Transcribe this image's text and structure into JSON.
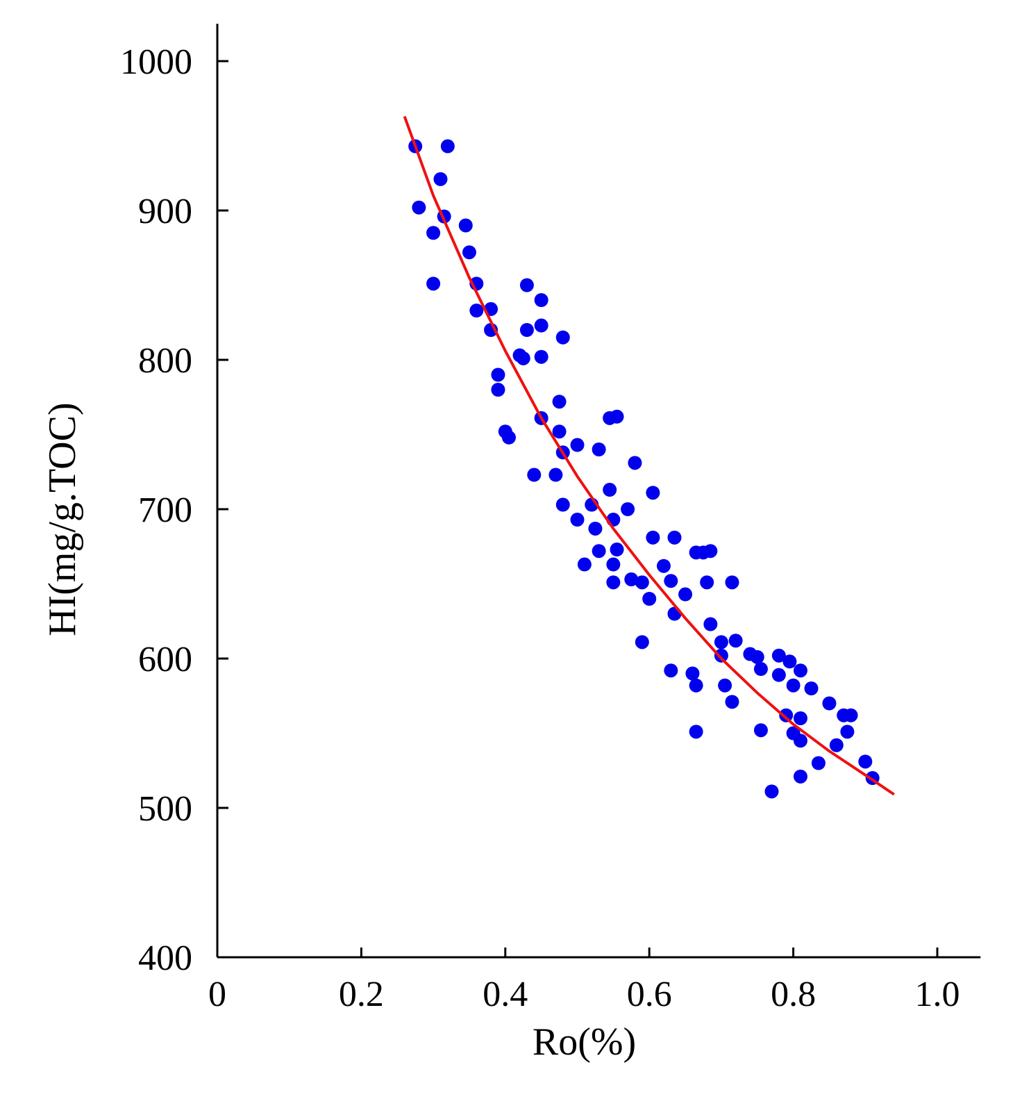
{
  "chart_data": {
    "type": "scatter",
    "xlabel": "Ro(%)",
    "ylabel": "HI(mg/g.TOC)",
    "xlim": [
      0,
      1.06
    ],
    "ylim": [
      400,
      1025
    ],
    "x_ticks": [
      0,
      0.2,
      0.4,
      0.6,
      0.8,
      1.0
    ],
    "x_tick_labels": [
      "0",
      "0.2",
      "0.4",
      "0.6",
      "0.8",
      "1.0"
    ],
    "y_ticks": [
      400,
      500,
      600,
      700,
      800,
      900,
      1000
    ],
    "y_tick_labels": [
      "400",
      "500",
      "600",
      "700",
      "800",
      "900",
      "1000"
    ],
    "grid": false,
    "colors": {
      "points": "#0000ee",
      "trend": "#ee1111",
      "axes": "#000000"
    },
    "points": [
      [
        0.275,
        943
      ],
      [
        0.28,
        902
      ],
      [
        0.32,
        943
      ],
      [
        0.31,
        921
      ],
      [
        0.3,
        885
      ],
      [
        0.315,
        896
      ],
      [
        0.3,
        851
      ],
      [
        0.345,
        890
      ],
      [
        0.35,
        872
      ],
      [
        0.36,
        851
      ],
      [
        0.36,
        833
      ],
      [
        0.38,
        834
      ],
      [
        0.38,
        820
      ],
      [
        0.43,
        850
      ],
      [
        0.45,
        840
      ],
      [
        0.43,
        820
      ],
      [
        0.45,
        823
      ],
      [
        0.48,
        815
      ],
      [
        0.42,
        803
      ],
      [
        0.425,
        801
      ],
      [
        0.45,
        802
      ],
      [
        0.39,
        790
      ],
      [
        0.39,
        780
      ],
      [
        0.4,
        752
      ],
      [
        0.405,
        748
      ],
      [
        0.475,
        772
      ],
      [
        0.45,
        761
      ],
      [
        0.475,
        752
      ],
      [
        0.48,
        738
      ],
      [
        0.44,
        723
      ],
      [
        0.47,
        723
      ],
      [
        0.48,
        703
      ],
      [
        0.5,
        743
      ],
      [
        0.53,
        740
      ],
      [
        0.545,
        761
      ],
      [
        0.555,
        762
      ],
      [
        0.58,
        731
      ],
      [
        0.545,
        713
      ],
      [
        0.52,
        703
      ],
      [
        0.5,
        693
      ],
      [
        0.525,
        687
      ],
      [
        0.55,
        693
      ],
      [
        0.57,
        700
      ],
      [
        0.605,
        711
      ],
      [
        0.53,
        672
      ],
      [
        0.555,
        673
      ],
      [
        0.51,
        663
      ],
      [
        0.55,
        663
      ],
      [
        0.55,
        651
      ],
      [
        0.575,
        653
      ],
      [
        0.59,
        651
      ],
      [
        0.6,
        640
      ],
      [
        0.605,
        681
      ],
      [
        0.62,
        662
      ],
      [
        0.635,
        681
      ],
      [
        0.63,
        652
      ],
      [
        0.65,
        643
      ],
      [
        0.635,
        630
      ],
      [
        0.665,
        671
      ],
      [
        0.675,
        671
      ],
      [
        0.685,
        672
      ],
      [
        0.68,
        651
      ],
      [
        0.715,
        651
      ],
      [
        0.59,
        611
      ],
      [
        0.63,
        592
      ],
      [
        0.66,
        590
      ],
      [
        0.665,
        582
      ],
      [
        0.665,
        551
      ],
      [
        0.685,
        623
      ],
      [
        0.7,
        611
      ],
      [
        0.7,
        602
      ],
      [
        0.72,
        612
      ],
      [
        0.705,
        582
      ],
      [
        0.715,
        571
      ],
      [
        0.74,
        603
      ],
      [
        0.75,
        601
      ],
      [
        0.755,
        593
      ],
      [
        0.78,
        602
      ],
      [
        0.78,
        589
      ],
      [
        0.795,
        598
      ],
      [
        0.8,
        582
      ],
      [
        0.81,
        592
      ],
      [
        0.825,
        580
      ],
      [
        0.755,
        552
      ],
      [
        0.79,
        562
      ],
      [
        0.8,
        550
      ],
      [
        0.81,
        560
      ],
      [
        0.81,
        545
      ],
      [
        0.85,
        570
      ],
      [
        0.87,
        562
      ],
      [
        0.88,
        562
      ],
      [
        0.875,
        551
      ],
      [
        0.86,
        542
      ],
      [
        0.835,
        530
      ],
      [
        0.81,
        521
      ],
      [
        0.77,
        511
      ],
      [
        0.9,
        531
      ],
      [
        0.91,
        520
      ]
    ],
    "trend_fit": {
      "description": "fitted curve",
      "points": [
        [
          0.26,
          963
        ],
        [
          0.3,
          910
        ],
        [
          0.35,
          855
        ],
        [
          0.4,
          806
        ],
        [
          0.45,
          761
        ],
        [
          0.5,
          722
        ],
        [
          0.55,
          687
        ],
        [
          0.6,
          656
        ],
        [
          0.65,
          627
        ],
        [
          0.7,
          600
        ],
        [
          0.75,
          577
        ],
        [
          0.8,
          556
        ],
        [
          0.85,
          538
        ],
        [
          0.9,
          522
        ],
        [
          0.94,
          509
        ]
      ]
    }
  }
}
